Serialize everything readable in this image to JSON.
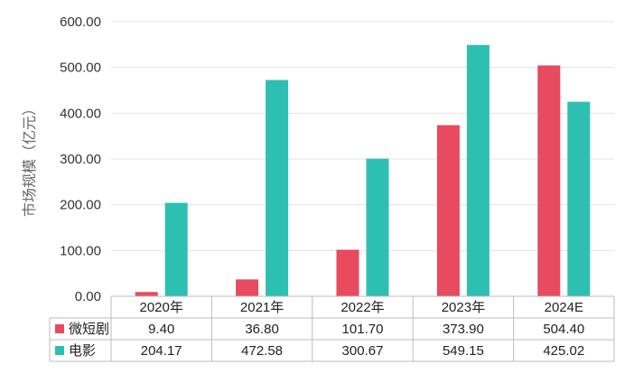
{
  "chart_data": {
    "type": "bar",
    "ylabel": "市场规模（亿元）",
    "ylim": [
      0,
      600
    ],
    "yticks": [
      "0.00",
      "100.00",
      "200.00",
      "300.00",
      "400.00",
      "500.00",
      "600.00"
    ],
    "grid": true,
    "categories": [
      "2020年",
      "2021年",
      "2022年",
      "2023年",
      "2024E"
    ],
    "series": [
      {
        "name": "微短剧",
        "color": "#e84a5f",
        "values": [
          9.4,
          36.8,
          101.7,
          373.9,
          504.4
        ],
        "labels": [
          "9.40",
          "36.80",
          "101.70",
          "373.90",
          "504.40"
        ]
      },
      {
        "name": "电影",
        "color": "#2ebfb3",
        "values": [
          204.17,
          472.58,
          300.67,
          549.15,
          425.02
        ],
        "labels": [
          "204.17",
          "472.58",
          "300.67",
          "549.15",
          "425.02"
        ]
      }
    ],
    "legend": "data-table"
  }
}
